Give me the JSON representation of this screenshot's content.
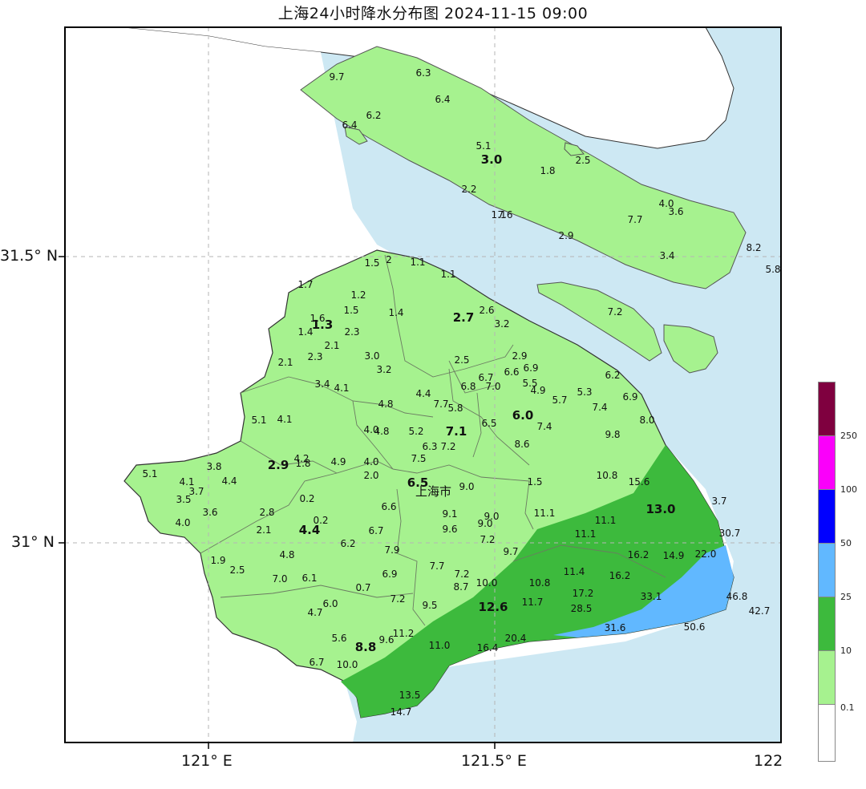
{
  "title": "上海24小时降水分布图 2024-11-15 09:00",
  "axes": {
    "lon_ticks": [
      {
        "value": 121.0,
        "label": "121° E"
      },
      {
        "value": 121.5,
        "label": "121.5° E"
      },
      {
        "value": 122.0,
        "label": "122"
      }
    ],
    "lat_ticks": [
      {
        "value": 31.5,
        "label": "31.5° N"
      },
      {
        "value": 31.0,
        "label": "31° N"
      }
    ],
    "lon_range": [
      120.75,
      122.0
    ],
    "lat_range": [
      30.67,
      31.93
    ],
    "grid": "dashed"
  },
  "city_label": "上海市",
  "colors": {
    "water": "#cde8f3",
    "land_outside": "#ffffff",
    "band_0_1_10": "#a6f28f",
    "band_10_25": "#3dba3d",
    "band_25_50": "#61b8ff",
    "band_50_100": "#0000ff",
    "band_100_250": "#fa00fa",
    "band_250_plus": "#7f003f",
    "district_line": "#7a8a70"
  },
  "legend": {
    "bands": [
      {
        "label": "0.1",
        "color": "#ffffff"
      },
      {
        "label": "10",
        "color": "#a6f28f"
      },
      {
        "label": "25",
        "color": "#3dba3d"
      },
      {
        "label": "50",
        "color": "#61b8ff"
      },
      {
        "label": "100",
        "color": "#0000ff"
      },
      {
        "label": "250",
        "color": "#fa00fa"
      },
      {
        "label": "",
        "color": "#7f003f"
      }
    ]
  },
  "district_values": [
    {
      "label": "3.0"
    },
    {
      "label": "1.3"
    },
    {
      "label": "2.7"
    },
    {
      "label": "6.0"
    },
    {
      "label": "7.1"
    },
    {
      "label": "2.9"
    },
    {
      "label": "6.5"
    },
    {
      "label": "4.4"
    },
    {
      "label": "13.0"
    },
    {
      "label": "12.6"
    },
    {
      "label": "8.8"
    }
  ],
  "station_values": [
    {
      "label": "9.7"
    },
    {
      "label": "6.3"
    },
    {
      "label": "6.4"
    },
    {
      "label": "6.2"
    },
    {
      "label": "6.4"
    },
    {
      "label": "5.1"
    },
    {
      "label": "1.8"
    },
    {
      "label": "2.5"
    },
    {
      "label": "2.2"
    },
    {
      "label": "1.1"
    },
    {
      "label": "7.6"
    },
    {
      "label": "4.0"
    },
    {
      "label": "3.6"
    },
    {
      "label": "7.7"
    },
    {
      "label": "2.9"
    },
    {
      "label": "3.4"
    },
    {
      "label": "8.2"
    },
    {
      "label": "5.8"
    },
    {
      "label": "7.2"
    },
    {
      "label": "1.5"
    },
    {
      "label": "2"
    },
    {
      "label": "1.1"
    },
    {
      "label": "1.1"
    },
    {
      "label": "1.7"
    },
    {
      "label": "1.2"
    },
    {
      "label": "1.5"
    },
    {
      "label": "1.4"
    },
    {
      "label": "1.6"
    },
    {
      "label": "1.4"
    },
    {
      "label": "2.3"
    },
    {
      "label": "2.1"
    },
    {
      "label": "2.3"
    },
    {
      "label": "2.1"
    },
    {
      "label": "3.0"
    },
    {
      "label": "3.2"
    },
    {
      "label": "2.6"
    },
    {
      "label": "3.2"
    },
    {
      "label": "2.5"
    },
    {
      "label": "2.9"
    },
    {
      "label": "6.9"
    },
    {
      "label": "6.7"
    },
    {
      "label": "6.6"
    },
    {
      "label": "6.8"
    },
    {
      "label": "7.0"
    },
    {
      "label": "5.5"
    },
    {
      "label": "4.9"
    },
    {
      "label": "6.2"
    },
    {
      "label": "3.4"
    },
    {
      "label": "4.1"
    },
    {
      "label": "4.4"
    },
    {
      "label": "4.8"
    },
    {
      "label": "7.7"
    },
    {
      "label": "5.8"
    },
    {
      "label": "5.7"
    },
    {
      "label": "5.3"
    },
    {
      "label": "6.9"
    },
    {
      "label": "7.4"
    },
    {
      "label": "5.1"
    },
    {
      "label": "4.1"
    },
    {
      "label": "4.0"
    },
    {
      "label": "4.8"
    },
    {
      "label": "5.2"
    },
    {
      "label": "6.5"
    },
    {
      "label": "7.4"
    },
    {
      "label": "8.0"
    },
    {
      "label": "6.3"
    },
    {
      "label": "7.2"
    },
    {
      "label": "8.6"
    },
    {
      "label": "9.8"
    },
    {
      "label": "4.2"
    },
    {
      "label": "1.8"
    },
    {
      "label": "4.9"
    },
    {
      "label": "4.0"
    },
    {
      "label": "7.5"
    },
    {
      "label": "3.8"
    },
    {
      "label": "5.1"
    },
    {
      "label": "4.1"
    },
    {
      "label": "3.7"
    },
    {
      "label": "3.5"
    },
    {
      "label": "4.4"
    },
    {
      "label": "2.0"
    },
    {
      "label": "9.0"
    },
    {
      "label": "1.5"
    },
    {
      "label": "10.8"
    },
    {
      "label": "15.6"
    },
    {
      "label": "3.7"
    },
    {
      "label": "3.6"
    },
    {
      "label": "0.2"
    },
    {
      "label": "2.8"
    },
    {
      "label": "0.2"
    },
    {
      "label": "6.6"
    },
    {
      "label": "9.1"
    },
    {
      "label": "9.0"
    },
    {
      "label": "11.1"
    },
    {
      "label": "4.0"
    },
    {
      "label": "2.1"
    },
    {
      "label": "6.7"
    },
    {
      "label": "9.6"
    },
    {
      "label": "9.0"
    },
    {
      "label": "11.1"
    },
    {
      "label": "11.1"
    },
    {
      "label": "30.7"
    },
    {
      "label": "7.2"
    },
    {
      "label": "6.2"
    },
    {
      "label": "7.9"
    },
    {
      "label": "9.7"
    },
    {
      "label": "16.2"
    },
    {
      "label": "14.9"
    },
    {
      "label": "22.0"
    },
    {
      "label": "1.9"
    },
    {
      "label": "4.8"
    },
    {
      "label": "2.5"
    },
    {
      "label": "7.0"
    },
    {
      "label": "6.1"
    },
    {
      "label": "6.9"
    },
    {
      "label": "7.7"
    },
    {
      "label": "7.2"
    },
    {
      "label": "11.4"
    },
    {
      "label": "16.2"
    },
    {
      "label": "0.7"
    },
    {
      "label": "10.8"
    },
    {
      "label": "8.7"
    },
    {
      "label": "10.0"
    },
    {
      "label": "17.2"
    },
    {
      "label": "6.0"
    },
    {
      "label": "7.2"
    },
    {
      "label": "11.7"
    },
    {
      "label": "33.1"
    },
    {
      "label": "46.8"
    },
    {
      "label": "4.7"
    },
    {
      "label": "9.5"
    },
    {
      "label": "28.5"
    },
    {
      "label": "42.7"
    },
    {
      "label": "31.6"
    },
    {
      "label": "50.6"
    },
    {
      "label": "5.6"
    },
    {
      "label": "9.6"
    },
    {
      "label": "11.2"
    },
    {
      "label": "20.4"
    },
    {
      "label": "11.0"
    },
    {
      "label": "16.4"
    },
    {
      "label": "6.7"
    },
    {
      "label": "10.0"
    },
    {
      "label": "13.5"
    },
    {
      "label": "14.7"
    }
  ]
}
